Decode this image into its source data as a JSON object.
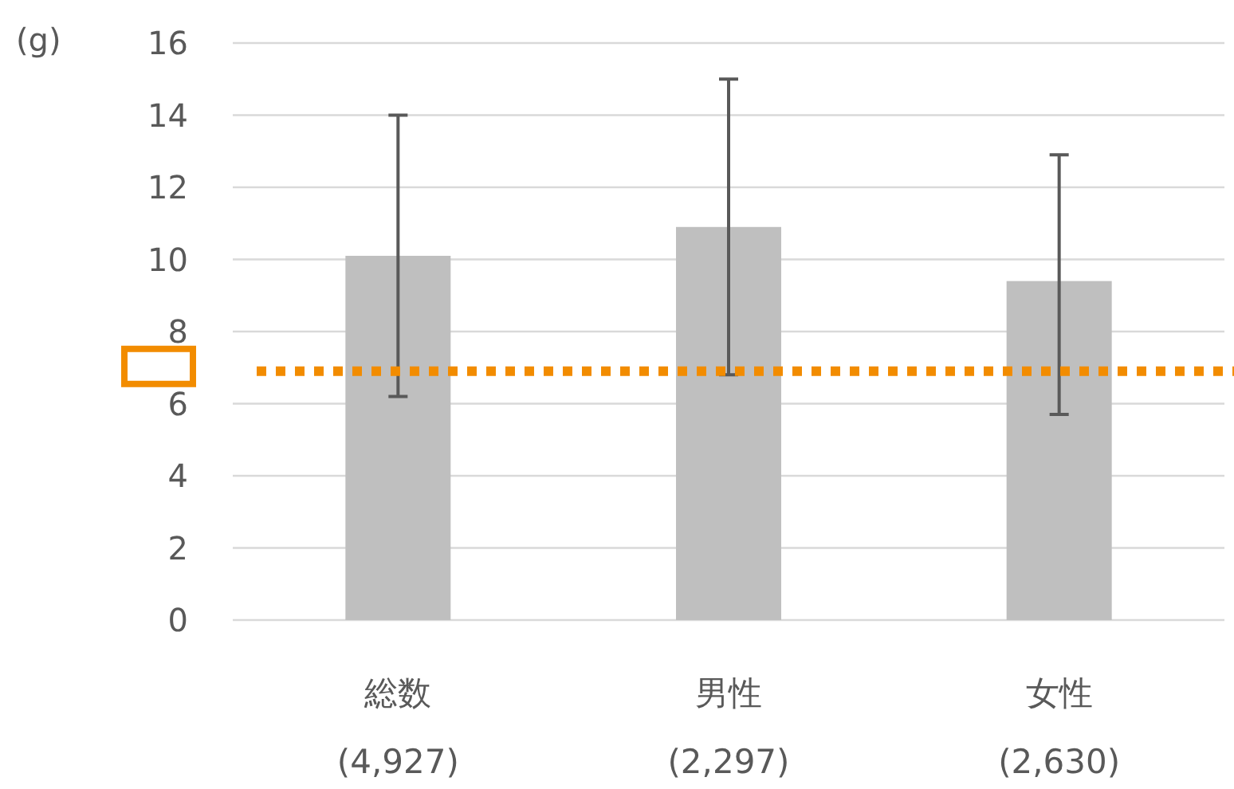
{
  "chart_data": {
    "type": "bar",
    "ylabel": "(g)",
    "categories": [
      "総数\n(4,927)",
      "男性\n(2,297)",
      "女性\n(2,630)"
    ],
    "values": [
      10.1,
      10.9,
      9.4
    ],
    "color": "#bfbfbf",
    "errors": [
      [
        6.2,
        14.0
      ],
      [
        6.8,
        15.0
      ],
      [
        5.7,
        12.9
      ]
    ],
    "ylim": [
      0,
      16
    ],
    "yticks": [
      0,
      2,
      4,
      6,
      8,
      10,
      12,
      14,
      16
    ],
    "grid": "y",
    "ref_lines": [
      {
        "axis": "y",
        "value": 6.9,
        "color": "#f28c00",
        "line_style": "dotted"
      }
    ]
  }
}
